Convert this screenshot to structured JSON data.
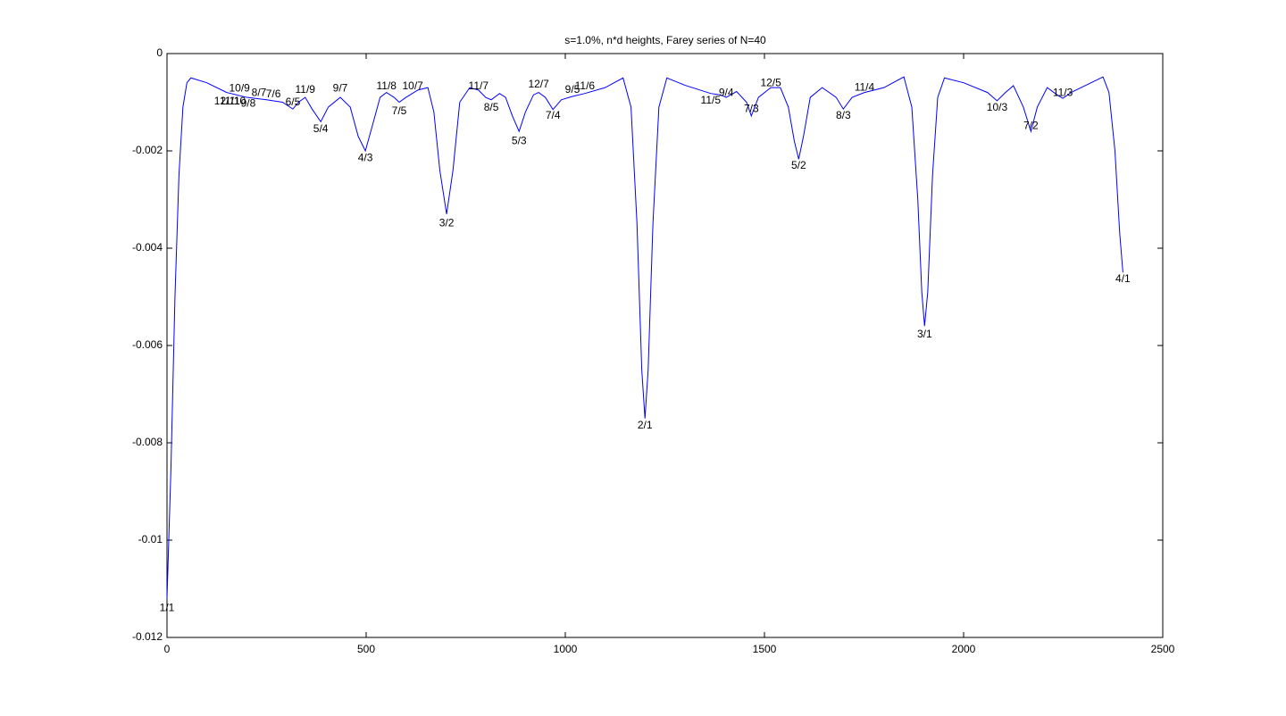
{
  "chart_data": {
    "type": "line",
    "title": "s=1.0%, n*d heights, Farey series of N=40",
    "color": "#0000ff",
    "grid": false,
    "xlim": [
      0,
      2500
    ],
    "xticks": [
      0,
      500,
      1000,
      1500,
      2000,
      2500
    ],
    "ylim": [
      -0.012,
      0
    ],
    "yticks": [
      0,
      -0.002,
      -0.004,
      -0.006,
      -0.008,
      -0.01,
      -0.012
    ],
    "x": [
      0,
      10,
      20,
      30,
      40,
      50,
      60,
      100,
      150,
      200,
      250,
      290,
      305,
      316,
      330,
      347,
      365,
      386,
      405,
      435,
      460,
      480,
      498,
      515,
      535,
      551,
      570,
      583,
      600,
      630,
      655,
      670,
      685,
      702,
      718,
      735,
      760,
      782,
      800,
      814,
      835,
      850,
      868,
      884,
      900,
      920,
      933,
      950,
      969,
      990,
      1018,
      1049,
      1100,
      1145,
      1165,
      1180,
      1192,
      1200,
      1208,
      1220,
      1235,
      1255,
      1300,
      1365,
      1390,
      1404,
      1430,
      1455,
      1467,
      1485,
      1516,
      1540,
      1560,
      1575,
      1586,
      1598,
      1615,
      1645,
      1680,
      1698,
      1720,
      1751,
      1800,
      1850,
      1870,
      1885,
      1895,
      1902,
      1910,
      1922,
      1935,
      1952,
      2000,
      2060,
      2084,
      2105,
      2125,
      2150,
      2169,
      2185,
      2210,
      2235,
      2249,
      2270,
      2320,
      2350,
      2365,
      2380,
      2392,
      2400
    ],
    "values": [
      -0.0112,
      -0.0085,
      -0.005,
      -0.0025,
      -0.0011,
      -0.0006,
      -0.0005,
      -0.0006,
      -0.0008,
      -0.0009,
      -0.00095,
      -0.001,
      -0.00108,
      -0.00114,
      -0.001,
      -0.0009,
      -0.00115,
      -0.0014,
      -0.0011,
      -0.0009,
      -0.0011,
      -0.0017,
      -0.002,
      -0.0015,
      -0.0009,
      -0.0008,
      -0.0009,
      -0.001,
      -0.0009,
      -0.00075,
      -0.0007,
      -0.0012,
      -0.0024,
      -0.0033,
      -0.0024,
      -0.001,
      -0.0007,
      -0.00075,
      -0.0009,
      -0.00095,
      -0.00082,
      -0.0009,
      -0.0013,
      -0.0016,
      -0.0012,
      -0.00085,
      -0.0008,
      -0.0009,
      -0.00115,
      -0.00095,
      -0.00088,
      -0.00082,
      -0.0007,
      -0.0005,
      -0.0011,
      -0.0035,
      -0.0065,
      -0.0075,
      -0.0065,
      -0.0035,
      -0.0011,
      -0.0005,
      -0.00065,
      -0.00082,
      -0.00085,
      -0.0009,
      -0.00078,
      -0.001,
      -0.00128,
      -0.0009,
      -0.0007,
      -0.0007,
      -0.0011,
      -0.0018,
      -0.00217,
      -0.0017,
      -0.0009,
      -0.0007,
      -0.0009,
      -0.00114,
      -0.0009,
      -0.0008,
      -0.0007,
      -0.00048,
      -0.0011,
      -0.003,
      -0.0049,
      -0.0056,
      -0.0049,
      -0.0025,
      -0.0009,
      -0.0005,
      -0.0006,
      -0.0008,
      -0.00097,
      -0.0008,
      -0.00066,
      -0.0011,
      -0.0016,
      -0.0011,
      -0.0007,
      -0.00085,
      -0.00092,
      -0.0008,
      -0.0006,
      -0.00048,
      -0.0008,
      -0.002,
      -0.0037,
      -0.0045
    ],
    "annotations": [
      {
        "text": "1/1",
        "x": 0,
        "y": -0.0114
      },
      {
        "text": "12/11",
        "x": 151,
        "y": -0.00099
      },
      {
        "text": "11/10",
        "x": 165,
        "y": -0.00099
      },
      {
        "text": "10/9",
        "x": 182,
        "y": -0.00072
      },
      {
        "text": "9/8",
        "x": 204,
        "y": -0.00103
      },
      {
        "text": "8/7",
        "x": 231,
        "y": -0.00081
      },
      {
        "text": "7/6",
        "x": 267,
        "y": -0.00084
      },
      {
        "text": "6/5",
        "x": 316,
        "y": -0.00101
      },
      {
        "text": "11/9",
        "x": 347,
        "y": -0.00075
      },
      {
        "text": "5/4",
        "x": 386,
        "y": -0.00156
      },
      {
        "text": "9/7",
        "x": 435,
        "y": -0.00072
      },
      {
        "text": "4/3",
        "x": 498,
        "y": -0.00215
      },
      {
        "text": "11/8",
        "x": 551,
        "y": -0.00068
      },
      {
        "text": "7/5",
        "x": 583,
        "y": -0.00119
      },
      {
        "text": "10/7",
        "x": 617,
        "y": -0.00068
      },
      {
        "text": "3/2",
        "x": 702,
        "y": -0.00349
      },
      {
        "text": "11/7",
        "x": 782,
        "y": -0.00068
      },
      {
        "text": "8/5",
        "x": 814,
        "y": -0.00112
      },
      {
        "text": "5/3",
        "x": 884,
        "y": -0.0018
      },
      {
        "text": "12/7",
        "x": 933,
        "y": -0.00064
      },
      {
        "text": "7/4",
        "x": 969,
        "y": -0.00128
      },
      {
        "text": "9/5",
        "x": 1018,
        "y": -0.00075
      },
      {
        "text": "11/6",
        "x": 1049,
        "y": -0.00068
      },
      {
        "text": "2/1",
        "x": 1200,
        "y": -0.00765
      },
      {
        "text": "11/5",
        "x": 1365,
        "y": -0.00097
      },
      {
        "text": "9/4",
        "x": 1404,
        "y": -0.00081
      },
      {
        "text": "7/3",
        "x": 1467,
        "y": -0.00114
      },
      {
        "text": "12/5",
        "x": 1516,
        "y": -0.00061
      },
      {
        "text": "5/2",
        "x": 1586,
        "y": -0.00231
      },
      {
        "text": "8/3",
        "x": 1698,
        "y": -0.00128
      },
      {
        "text": "11/4",
        "x": 1751,
        "y": -0.0007
      },
      {
        "text": "3/1",
        "x": 1902,
        "y": -0.00578
      },
      {
        "text": "10/3",
        "x": 2084,
        "y": -0.00112
      },
      {
        "text": "7/2",
        "x": 2169,
        "y": -0.00149
      },
      {
        "text": "11/3",
        "x": 2249,
        "y": -0.00081
      },
      {
        "text": "4/1",
        "x": 2400,
        "y": -0.00464
      }
    ]
  }
}
